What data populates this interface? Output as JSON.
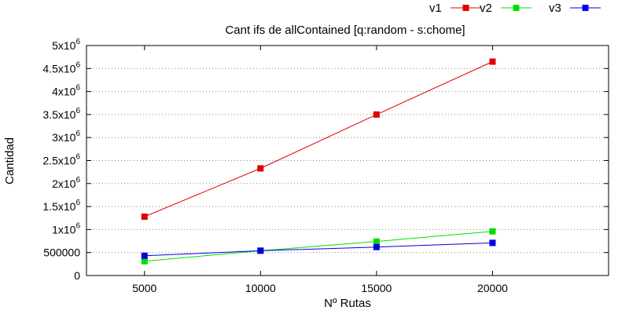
{
  "chart_data": {
    "type": "line",
    "title": "Cant ifs de allContained [q:random - s:chome]",
    "xlabel": "Nº Rutas",
    "ylabel": "Cantidad",
    "x": [
      5000,
      10000,
      15000,
      20000
    ],
    "x_ticks": [
      5000,
      10000,
      15000,
      20000
    ],
    "xlim": [
      2500,
      25000
    ],
    "ylim": [
      0,
      5000000
    ],
    "y_ticks": [
      0,
      500000,
      1000000,
      1500000,
      2000000,
      2500000,
      3000000,
      3500000,
      4000000,
      4500000,
      5000000
    ],
    "y_tick_labels": [
      {
        "mant": "0",
        "exp": ""
      },
      {
        "mant": "500000",
        "exp": ""
      },
      {
        "mant": "1x10",
        "exp": "6"
      },
      {
        "mant": "1.5x10",
        "exp": "6"
      },
      {
        "mant": "2x10",
        "exp": "6"
      },
      {
        "mant": "2.5x10",
        "exp": "6"
      },
      {
        "mant": "3x10",
        "exp": "6"
      },
      {
        "mant": "3.5x10",
        "exp": "6"
      },
      {
        "mant": "4x10",
        "exp": "6"
      },
      {
        "mant": "4.5x10",
        "exp": "6"
      },
      {
        "mant": "5x10",
        "exp": "6"
      }
    ],
    "grid": "horizontal-dotted",
    "legend_position": "top-right",
    "series": [
      {
        "name": "v1",
        "color": "#e00000",
        "values": [
          1280000,
          2330000,
          3500000,
          4650000
        ]
      },
      {
        "name": "v2",
        "color": "#00e000",
        "values": [
          310000,
          540000,
          740000,
          960000
        ]
      },
      {
        "name": "v3",
        "color": "#0000e0",
        "values": [
          430000,
          540000,
          620000,
          710000
        ]
      }
    ]
  }
}
